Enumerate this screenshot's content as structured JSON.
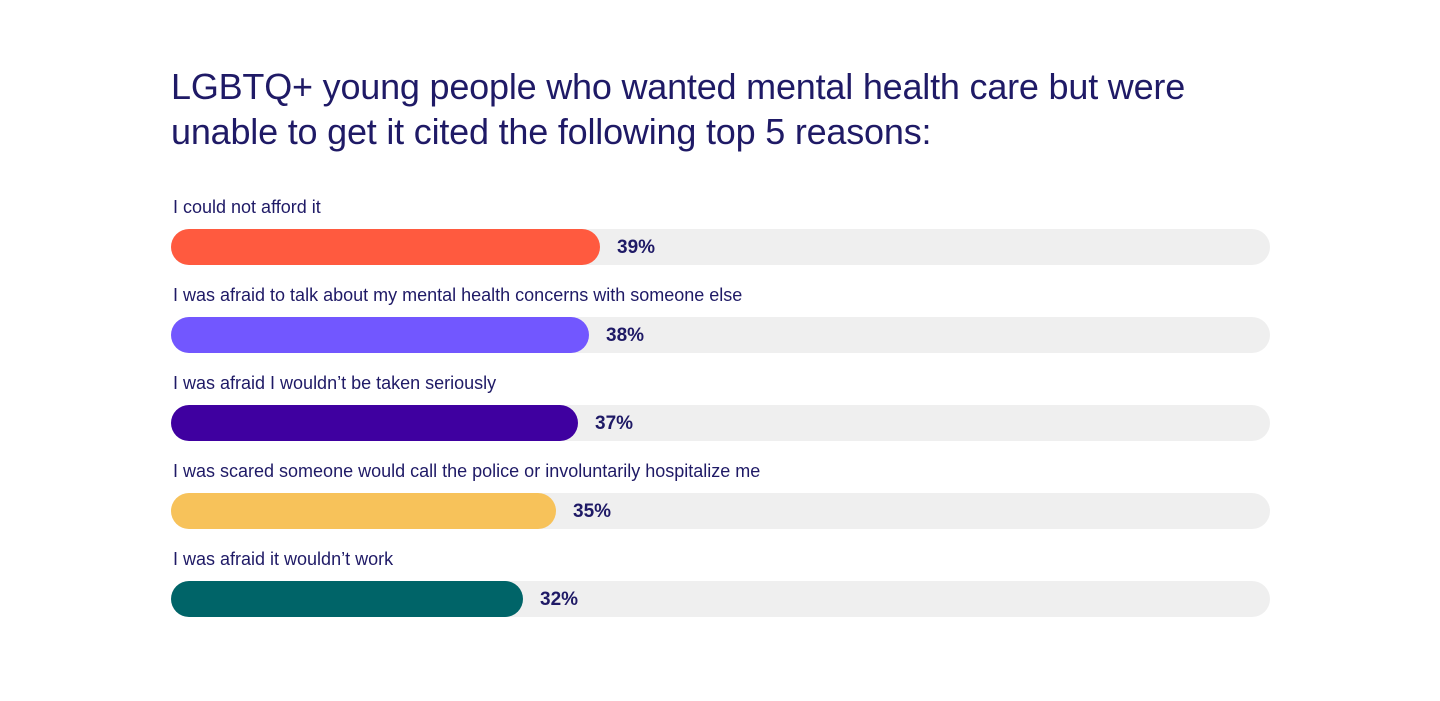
{
  "chart_data": {
    "type": "bar",
    "orientation": "horizontal",
    "title": "LGBTQ+ young people who wanted mental health care but were unable to get it cited the following top 5 reasons:",
    "xlim": [
      0,
      100
    ],
    "grid": false,
    "categories": [
      "I could not afford it",
      "I was afraid to talk about my mental health concerns with someone else",
      "I was afraid I wouldn’t be taken seriously",
      "I was scared someone would call the police or involuntarily hospitalize me",
      "I was afraid it wouldn’t work"
    ],
    "values": [
      39,
      38,
      37,
      35,
      32
    ],
    "value_labels": [
      "39%",
      "38%",
      "37%",
      "35%",
      "32%"
    ],
    "colors": [
      "#ff5a3f",
      "#7257ff",
      "#3f00a0",
      "#f7c25a",
      "#006468"
    ],
    "track_color": "#efefef"
  }
}
